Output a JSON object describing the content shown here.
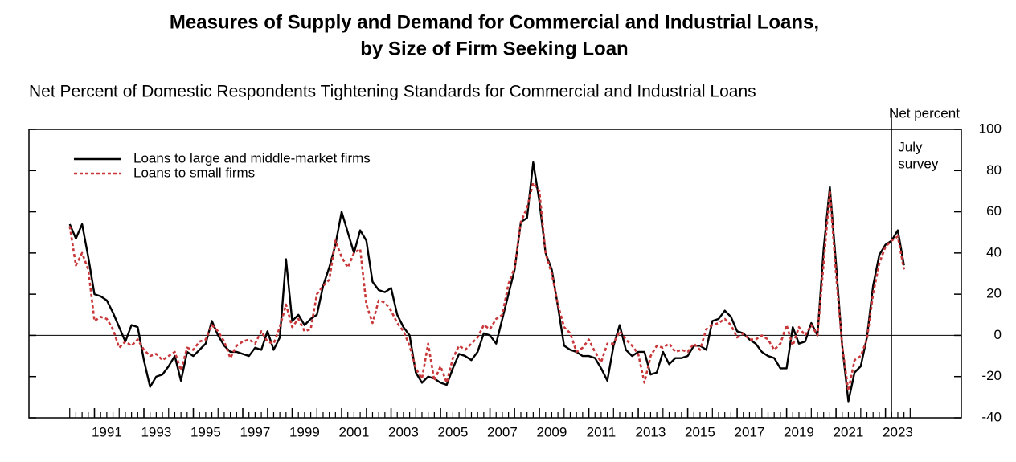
{
  "chart_data": {
    "type": "line",
    "title": "Measures of Supply and Demand for Commercial and Industrial Loans,",
    "title_line2": "by Size of Firm Seeking Loan",
    "subtitle": "Net Percent of Domestic Respondents Tightening Standards for Commercial and Industrial Loans",
    "y_axis_label": "Net percent",
    "annotation": {
      "lines": [
        "July",
        "survey"
      ],
      "x": 2023.25
    },
    "x": [
      1990,
      1990.25,
      1990.5,
      1990.75,
      1991,
      1991.25,
      1991.5,
      1991.75,
      1992,
      1992.25,
      1992.5,
      1992.75,
      1993,
      1993.25,
      1993.5,
      1993.75,
      1994,
      1994.25,
      1994.5,
      1994.75,
      1995,
      1995.25,
      1995.5,
      1995.75,
      1996,
      1996.25,
      1996.5,
      1996.75,
      1997,
      1997.25,
      1997.5,
      1997.75,
      1998,
      1998.25,
      1998.5,
      1998.75,
      1999,
      1999.25,
      1999.5,
      1999.75,
      2000,
      2000.25,
      2000.5,
      2000.75,
      2001,
      2001.25,
      2001.5,
      2001.75,
      2002,
      2002.25,
      2002.5,
      2002.75,
      2003,
      2003.25,
      2003.5,
      2003.75,
      2004,
      2004.25,
      2004.5,
      2004.75,
      2005,
      2005.25,
      2005.5,
      2005.75,
      2006,
      2006.25,
      2006.5,
      2006.75,
      2007,
      2007.25,
      2007.5,
      2007.75,
      2008,
      2008.25,
      2008.5,
      2008.75,
      2009,
      2009.25,
      2009.5,
      2009.75,
      2010,
      2010.25,
      2010.5,
      2010.75,
      2011,
      2011.25,
      2011.5,
      2011.75,
      2012,
      2012.25,
      2012.5,
      2012.75,
      2013,
      2013.25,
      2013.5,
      2013.75,
      2014,
      2014.25,
      2014.5,
      2014.75,
      2015,
      2015.25,
      2015.5,
      2015.75,
      2016,
      2016.25,
      2016.5,
      2016.75,
      2017,
      2017.25,
      2017.5,
      2017.75,
      2018,
      2018.25,
      2018.5,
      2018.75,
      2019,
      2019.25,
      2019.5,
      2019.75,
      2020,
      2020.25,
      2020.5,
      2020.75,
      2021,
      2021.25,
      2021.5,
      2021.75,
      2022,
      2022.25,
      2022.5,
      2022.75,
      2023,
      2023.25,
      2023.5,
      2023.75
    ],
    "series": [
      {
        "name": "Loans to large and middle-market firms",
        "color": "#000000",
        "dash": false,
        "values": [
          54,
          47,
          54,
          38,
          20,
          19,
          17,
          11,
          4,
          -3,
          5,
          4,
          -12,
          -25,
          -20,
          -19,
          -15,
          -10,
          -22,
          -8,
          -10,
          -7,
          -4,
          7,
          0,
          -5,
          -8,
          -8,
          -9,
          -10,
          -6,
          -7,
          2,
          -7,
          -1,
          37,
          7,
          10,
          5,
          8,
          10,
          24,
          33,
          44,
          60,
          50,
          40,
          51,
          46,
          26,
          22,
          21,
          23,
          10,
          4,
          0,
          -18,
          -23,
          -20,
          -21,
          -23,
          -24,
          -16,
          -9,
          -10,
          -12,
          -8,
          1,
          0,
          -4,
          8,
          20,
          32,
          55,
          57,
          84,
          65,
          40,
          32,
          14,
          -5,
          -7,
          -8,
          -10,
          -10,
          -11,
          -16,
          -22,
          -5,
          5,
          -7,
          -10,
          -8,
          -8,
          -19,
          -18,
          -8,
          -14,
          -11,
          -11,
          -10,
          -5,
          -5,
          -7,
          7,
          8,
          12,
          9,
          2,
          1,
          -2,
          -4,
          -8,
          -10,
          -11,
          -16,
          -16,
          4,
          -4,
          -3,
          6,
          0,
          42,
          72,
          35,
          -5,
          -32,
          -18,
          -15,
          -1,
          24,
          39,
          44,
          46,
          51,
          34
        ]
      },
      {
        "name": "Loans to small firms",
        "color": "#c8383a",
        "dash": true,
        "values": [
          53,
          34,
          40,
          32,
          7,
          9,
          8,
          3,
          -6,
          -3,
          -5,
          -2,
          -7,
          -10,
          -9,
          -12,
          -10,
          -8,
          -17,
          -6,
          -7,
          -3,
          -2,
          5,
          2,
          -3,
          -11,
          -5,
          -3,
          -2,
          -4,
          2,
          -3,
          -4,
          4,
          15,
          4,
          8,
          2,
          3,
          20,
          24,
          27,
          46,
          38,
          33,
          40,
          42,
          15,
          6,
          17,
          16,
          12,
          6,
          2,
          -5,
          -16,
          -21,
          -4,
          -22,
          -15,
          -23,
          -11,
          -5,
          -7,
          -4,
          -1,
          5,
          3,
          8,
          10,
          25,
          33,
          55,
          62,
          74,
          70,
          40,
          30,
          15,
          4,
          1,
          -8,
          -6,
          -2,
          -8,
          -13,
          -4,
          -4,
          2,
          -2,
          -5,
          -9,
          -23,
          -10,
          -5,
          -6,
          -4,
          -8,
          -7,
          -8,
          -4,
          -7,
          3,
          5,
          6,
          8,
          5,
          -1,
          1,
          -2,
          -2,
          0,
          -2,
          -7,
          -4,
          5,
          -5,
          4,
          0,
          5,
          0,
          35,
          70,
          30,
          -5,
          -27,
          -12,
          -10,
          -2,
          20,
          35,
          43,
          46,
          48,
          32
        ]
      }
    ],
    "xlim": [
      1988.35,
      2026.07
    ],
    "xticks": [
      1991,
      1993,
      1995,
      1997,
      1999,
      2001,
      2003,
      2005,
      2007,
      2009,
      2011,
      2013,
      2015,
      2017,
      2019,
      2021,
      2023
    ],
    "ylim": [
      -40,
      100
    ],
    "yticks": [
      -40,
      -20,
      0,
      20,
      40,
      60,
      80,
      100
    ],
    "grid": false,
    "legend": "upper left"
  }
}
